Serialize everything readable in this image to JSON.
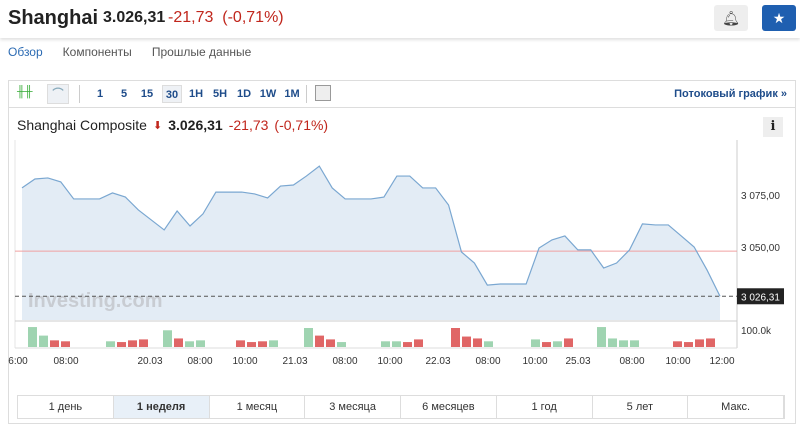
{
  "header": {
    "title": "Shanghai",
    "price": "3.026,31",
    "change": "-21,73",
    "change_pct": "(-0,71%)",
    "bell_icon": "bell-plus-icon",
    "star_icon": "star-icon"
  },
  "nav": [
    "Обзор",
    "Компоненты",
    "Прошлые данные"
  ],
  "toolbar": {
    "timeframes": [
      "1",
      "5",
      "15",
      "30",
      "1H",
      "5H",
      "1D",
      "1W",
      "1M"
    ],
    "selected": "30",
    "stream_label": "Потоковый график »"
  },
  "chart_title": {
    "name": "Shanghai Composite",
    "price": "3.026,31",
    "change": "-21,73",
    "change_pct": "(-0,71%)",
    "info": "i"
  },
  "watermark": "Investing.com",
  "colors": {
    "line": "#7aa7d1",
    "fill": "#e3ecf5",
    "up": "#9fd4b1",
    "down": "#e06666",
    "negative": "#c0261c",
    "brand": "#1f5fb0"
  },
  "chart_data": {
    "type": "area",
    "values": [
      3078.4,
      3082.7,
      3083.2,
      3081.3,
      3073.1,
      3073.1,
      3073.1,
      3076.0,
      3074.0,
      3067.8,
      3063.0,
      3058.2,
      3067.3,
      3060.1,
      3065.9,
      3076.4,
      3076.4,
      3076.4,
      3075.5,
      3073.6,
      3079.3,
      3079.8,
      3084.1,
      3088.9,
      3078.4,
      3073.1,
      3073.1,
      3073.1,
      3074.0,
      3084.1,
      3084.1,
      3078.4,
      3078.4,
      3070.2,
      3047.6,
      3042.3,
      3031.7,
      3032.2,
      3032.2,
      3032.2,
      3049.5,
      3053.4,
      3055.3,
      3048.6,
      3048.6,
      3039.9,
      3042.3,
      3048.6,
      3061.1,
      3060.6,
      3060.6,
      3055.3,
      3050.0,
      3038.9,
      3026.3
    ],
    "y_ticks": [
      "3 075,00",
      "3 050,00"
    ],
    "y_tick_values": [
      3075,
      3050
    ],
    "last_value_label": "3 026,31",
    "last_value": 3026.31,
    "prev_close": 3048.04,
    "x_ticks": [
      "6:00",
      "08:00",
      "20.03",
      "08:00",
      "10:00",
      "21.03",
      "08:00",
      "10:00",
      "22.03",
      "08:00",
      "10:00",
      "25.03",
      "08:00",
      "10:00",
      "12:00"
    ],
    "volume_label": "100.0k",
    "volume": [
      [
        105,
        "up"
      ],
      [
        60,
        "up"
      ],
      [
        35,
        "down"
      ],
      [
        30,
        "down"
      ],
      [
        30,
        "up"
      ],
      [
        26,
        "down"
      ],
      [
        35,
        "down"
      ],
      [
        40,
        "down"
      ],
      [
        88,
        "up"
      ],
      [
        45,
        "down"
      ],
      [
        30,
        "up"
      ],
      [
        35,
        "up"
      ],
      [
        35,
        "down"
      ],
      [
        26,
        "down"
      ],
      [
        30,
        "down"
      ],
      [
        35,
        "up"
      ],
      [
        100,
        "up"
      ],
      [
        60,
        "down"
      ],
      [
        40,
        "down"
      ],
      [
        26,
        "up"
      ],
      [
        30,
        "up"
      ],
      [
        30,
        "up"
      ],
      [
        26,
        "down"
      ],
      [
        40,
        "down"
      ],
      [
        100,
        "down"
      ],
      [
        55,
        "down"
      ],
      [
        45,
        "down"
      ],
      [
        30,
        "up"
      ],
      [
        40,
        "up"
      ],
      [
        26,
        "down"
      ],
      [
        30,
        "up"
      ],
      [
        45,
        "down"
      ],
      [
        105,
        "up"
      ],
      [
        45,
        "up"
      ],
      [
        35,
        "up"
      ],
      [
        35,
        "up"
      ],
      [
        30,
        "down"
      ],
      [
        26,
        "down"
      ],
      [
        40,
        "down"
      ],
      [
        45,
        "down"
      ]
    ]
  },
  "ranges": [
    "1 день",
    "1 неделя",
    "1 месяц",
    "3 месяца",
    "6 месяцев",
    "1 год",
    "5 лет",
    "Макс."
  ],
  "selected_range": "1 неделя"
}
